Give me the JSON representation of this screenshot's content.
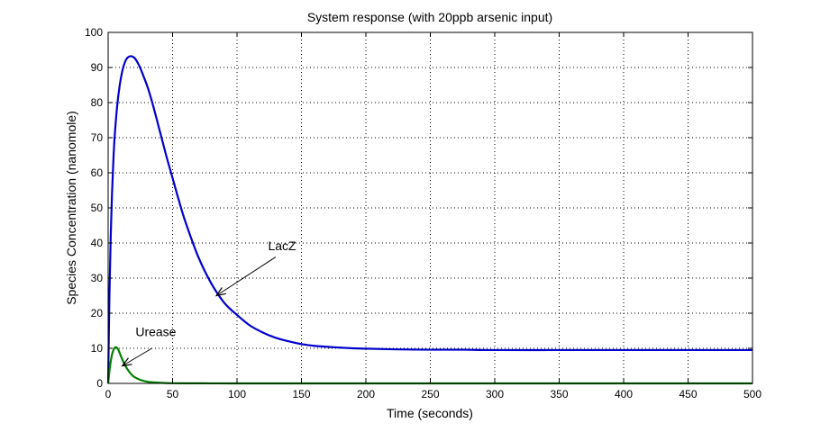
{
  "chart_data": {
    "type": "line",
    "title": "System response (with 20ppb arsenic input)",
    "xlabel": "Time (seconds)",
    "ylabel": "Species Concentration (nanomole)",
    "xlim": [
      0,
      500
    ],
    "ylim": [
      0,
      100
    ],
    "xticks": [
      0,
      50,
      100,
      150,
      200,
      250,
      300,
      350,
      400,
      450,
      500
    ],
    "yticks": [
      0,
      10,
      20,
      30,
      40,
      50,
      60,
      70,
      80,
      90,
      100
    ],
    "grid": true,
    "series": [
      {
        "name": "LacZ",
        "color": "#0000cc",
        "x": [
          0,
          1,
          2,
          3,
          4,
          5,
          7,
          9,
          11,
          13,
          15,
          17,
          19,
          21,
          23,
          25,
          28,
          31,
          35,
          40,
          45,
          50,
          55,
          60,
          70,
          80,
          90,
          100,
          110,
          120,
          130,
          140,
          150,
          160,
          175,
          190,
          200,
          225,
          250,
          275,
          300,
          350,
          400,
          450,
          500
        ],
        "values": [
          0,
          25,
          42,
          54,
          63,
          70,
          79,
          85,
          89,
          91.5,
          92.8,
          93.2,
          93.1,
          92.5,
          91.3,
          89.8,
          87,
          84,
          79,
          72,
          65,
          58.5,
          52,
          46,
          36,
          28.5,
          23,
          19.5,
          16.5,
          14.5,
          13,
          12,
          11.2,
          10.7,
          10.3,
          10,
          9.9,
          9.7,
          9.6,
          9.6,
          9.5,
          9.5,
          9.5,
          9.5,
          9.5
        ]
      },
      {
        "name": "Urease",
        "color": "#008000",
        "x": [
          0,
          1,
          2,
          3,
          4,
          5,
          6,
          7,
          8,
          9,
          10,
          12,
          14,
          16,
          18,
          20,
          25,
          30,
          35,
          40,
          45,
          50,
          60,
          80,
          100,
          150,
          200,
          300,
          400,
          500
        ],
        "values": [
          0,
          3.5,
          6.2,
          8.2,
          9.4,
          10.1,
          10.3,
          10.1,
          9.5,
          8.6,
          7.7,
          6,
          4.6,
          3.5,
          2.6,
          1.9,
          1,
          0.5,
          0.3,
          0.2,
          0.1,
          0.05,
          0.03,
          0.02,
          0,
          0,
          0,
          0,
          0,
          0
        ]
      }
    ],
    "annotations": [
      {
        "text": "LacZ",
        "text_x": 135,
        "text_y": 38,
        "arrow_from": [
          130,
          36
        ],
        "arrow_to": [
          84,
          25
        ]
      },
      {
        "text": "Urease",
        "text_x": 37,
        "text_y": 13.5,
        "arrow_from": [
          34,
          10
        ],
        "arrow_to": [
          11,
          5
        ]
      }
    ]
  }
}
